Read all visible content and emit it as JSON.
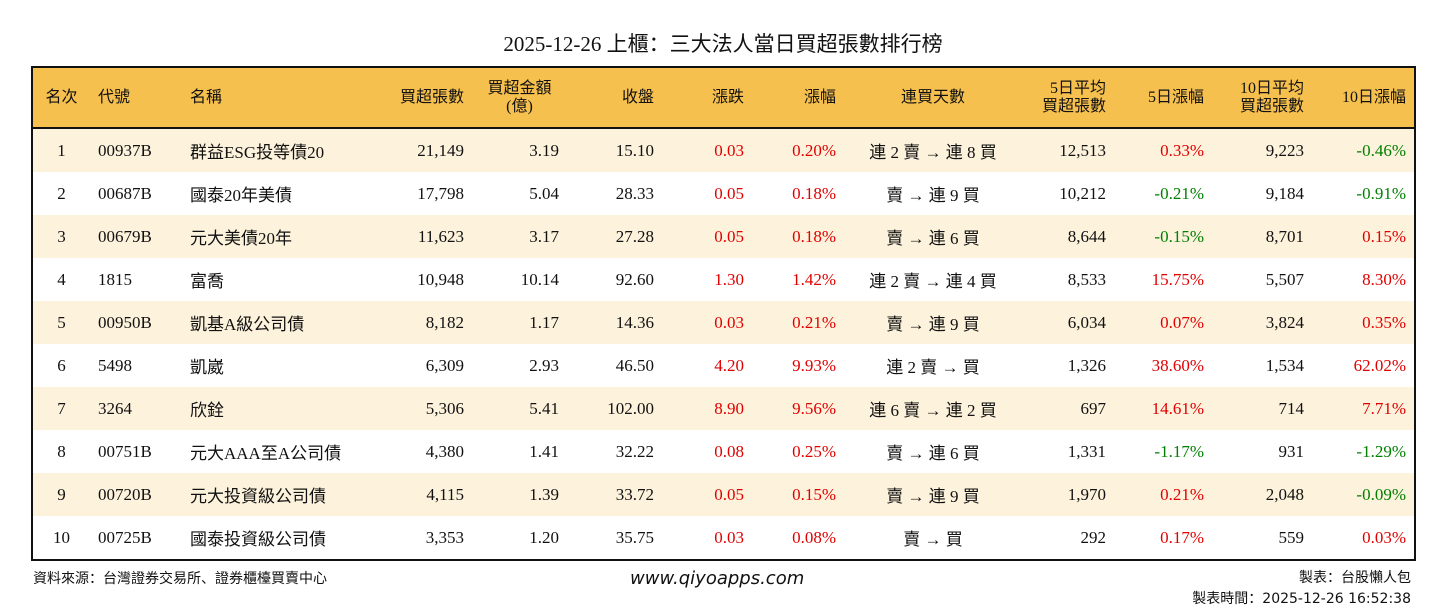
{
  "title": "2025-12-26 上櫃：三大法人當日買超張數排行榜",
  "columns": [
    "名次",
    "代號",
    "名稱",
    "買超張數",
    "買超金額\n(億)",
    "收盤",
    "漲跌",
    "漲幅",
    "連買天數",
    "5日平均\n買超張數",
    "5日漲幅",
    "10日平均\n買超張數",
    "10日漲幅"
  ],
  "rows": [
    [
      "1",
      "00937B",
      "群益ESG投等債20",
      "21,149",
      "3.19",
      "15.10",
      "0.03",
      "0.20%",
      "連 2 賣 → 連 8 買",
      "12,513",
      "0.33%",
      "9,223",
      "-0.46%"
    ],
    [
      "2",
      "00687B",
      "國泰20年美債",
      "17,798",
      "5.04",
      "28.33",
      "0.05",
      "0.18%",
      "賣 → 連 9 買",
      "10,212",
      "-0.21%",
      "9,184",
      "-0.91%"
    ],
    [
      "3",
      "00679B",
      "元大美債20年",
      "11,623",
      "3.17",
      "27.28",
      "0.05",
      "0.18%",
      "賣 → 連 6 買",
      "8,644",
      "-0.15%",
      "8,701",
      "0.15%"
    ],
    [
      "4",
      "1815",
      "富喬",
      "10,948",
      "10.14",
      "92.60",
      "1.30",
      "1.42%",
      "連 2 賣 → 連 4 買",
      "8,533",
      "15.75%",
      "5,507",
      "8.30%"
    ],
    [
      "5",
      "00950B",
      "凱基A級公司債",
      "8,182",
      "1.17",
      "14.36",
      "0.03",
      "0.21%",
      "賣 → 連 9 買",
      "6,034",
      "0.07%",
      "3,824",
      "0.35%"
    ],
    [
      "6",
      "5498",
      "凱崴",
      "6,309",
      "2.93",
      "46.50",
      "4.20",
      "9.93%",
      "連 2 賣 → 買",
      "1,326",
      "38.60%",
      "1,534",
      "62.02%"
    ],
    [
      "7",
      "3264",
      "欣銓",
      "5,306",
      "5.41",
      "102.00",
      "8.90",
      "9.56%",
      "連 6 賣 → 連 2 買",
      "697",
      "14.61%",
      "714",
      "7.71%"
    ],
    [
      "8",
      "00751B",
      "元大AAA至A公司債",
      "4,380",
      "1.41",
      "32.22",
      "0.08",
      "0.25%",
      "賣 → 連 6 買",
      "1,331",
      "-1.17%",
      "931",
      "-1.29%"
    ],
    [
      "9",
      "00720B",
      "元大投資級公司債",
      "4,115",
      "1.39",
      "33.72",
      "0.05",
      "0.15%",
      "賣 → 連 9 買",
      "1,970",
      "0.21%",
      "2,048",
      "-0.09%"
    ],
    [
      "10",
      "00725B",
      "國泰投資級公司債",
      "3,353",
      "1.20",
      "35.75",
      "0.03",
      "0.08%",
      "賣 → 買",
      "292",
      "0.17%",
      "559",
      "0.03%"
    ]
  ],
  "colors": {
    "header_bg": "#F6C04E",
    "row_alt_bg": "#FDF2DC",
    "up": "#E00000",
    "down": "#008000"
  },
  "footer": {
    "source": "資料來源：台灣證券交易所、證券櫃檯買賣中心",
    "website": "www.qiyoapps.com",
    "author": "製表：台股懶人包",
    "timestamp": "製表時間：2025-12-26 16:52:38"
  }
}
